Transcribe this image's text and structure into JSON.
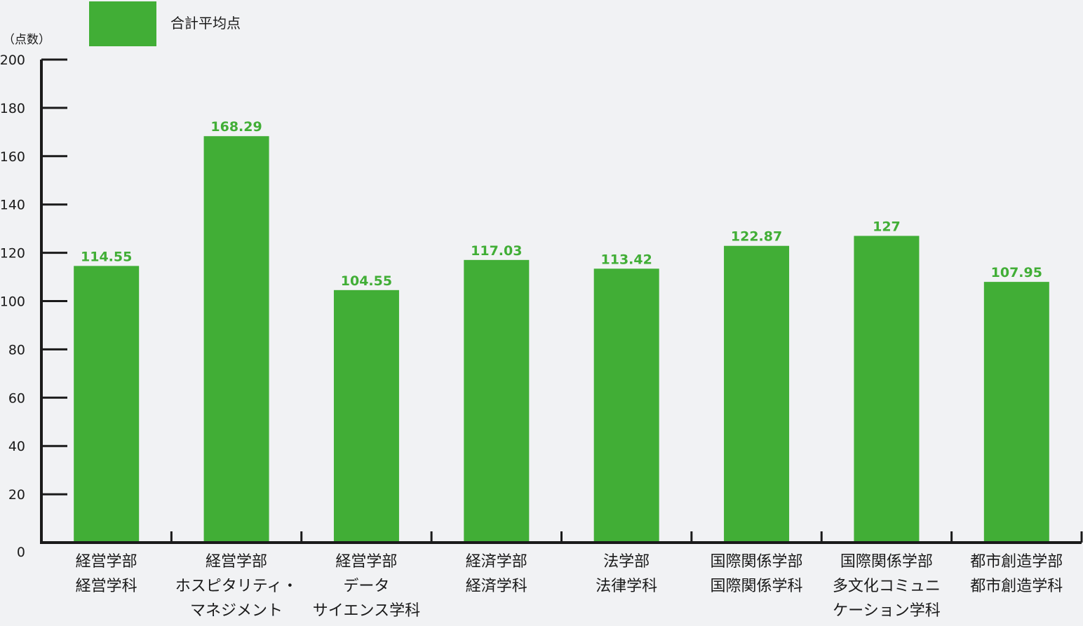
{
  "chart_data": {
    "type": "bar",
    "y_unit_label": "（点数）",
    "legend": {
      "label": "合計平均点",
      "color": "#41ae36",
      "placement": "top-left"
    },
    "colors": {
      "bar": "#41ae36",
      "value_label": "#41ae36",
      "axis": "#1a1a1a",
      "text": "#1a1a1a"
    },
    "ylim": [
      0,
      200
    ],
    "yticks": [
      0,
      20,
      40,
      60,
      80,
      100,
      120,
      140,
      160,
      180,
      200
    ],
    "categories": [
      [
        "経営学部",
        "経営学科"
      ],
      [
        "経営学部",
        "ホスピタリティ・",
        "マネジメント"
      ],
      [
        "経営学部",
        "データ",
        "サイエンス学科"
      ],
      [
        "経済学部",
        "経済学科"
      ],
      [
        "法学部",
        "法律学科"
      ],
      [
        "国際関係学部",
        "国際関係学科"
      ],
      [
        "国際関係学部",
        "多文化コミュニ",
        "ケーション学科"
      ],
      [
        "都市創造学部",
        "都市創造学科"
      ]
    ],
    "values": [
      114.55,
      168.29,
      104.55,
      117.03,
      113.42,
      122.87,
      127,
      107.95
    ],
    "value_labels": [
      "114.55",
      "168.29",
      "104.55",
      "117.03",
      "113.42",
      "122.87",
      "127",
      "107.95"
    ]
  }
}
